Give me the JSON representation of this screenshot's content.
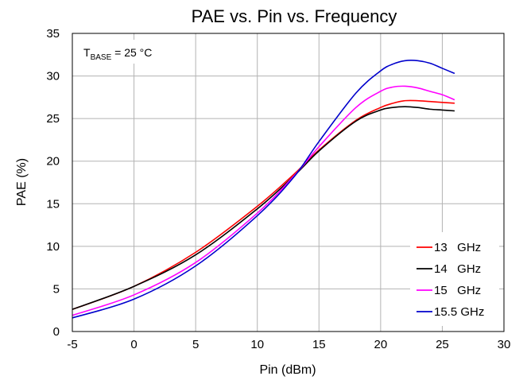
{
  "chart_data": {
    "type": "line",
    "title": "PAE vs. Pin vs. Frequency",
    "xlabel": "Pin (dBm)",
    "ylabel": "PAE (%)",
    "xlim": [
      -5,
      30
    ],
    "ylim": [
      0,
      35
    ],
    "xticks": [
      -5,
      0,
      5,
      10,
      15,
      20,
      25,
      30
    ],
    "yticks": [
      0,
      5,
      10,
      15,
      20,
      25,
      30,
      35
    ],
    "grid": true,
    "legend_position": "bottom-right",
    "annotation": {
      "main": "T",
      "sub": "BASE",
      "rest": " = 25 °C"
    },
    "series": [
      {
        "name": "13   GHz",
        "color": "#ff0000",
        "x": [
          -5,
          0,
          5,
          10,
          13,
          15,
          18,
          20,
          21,
          22,
          23,
          24,
          25,
          26
        ],
        "y": [
          2.6,
          5.3,
          9.3,
          14.7,
          18.5,
          21.3,
          24.8,
          26.3,
          26.8,
          27.1,
          27.1,
          27.0,
          26.9,
          26.8
        ]
      },
      {
        "name": "14   GHz",
        "color": "#000000",
        "x": [
          -5,
          0,
          5,
          10,
          13,
          15,
          18,
          20,
          21,
          22,
          23,
          24,
          25,
          26
        ],
        "y": [
          2.6,
          5.3,
          9.0,
          14.4,
          18.3,
          21.2,
          24.7,
          26.0,
          26.3,
          26.4,
          26.3,
          26.1,
          26.0,
          25.9
        ]
      },
      {
        "name": "15   GHz",
        "color": "#ff00ff",
        "x": [
          -5,
          0,
          5,
          10,
          13,
          15,
          18,
          20,
          21,
          22,
          23,
          24,
          25,
          26
        ],
        "y": [
          1.9,
          4.3,
          8.1,
          13.9,
          18.3,
          21.7,
          26.3,
          28.2,
          28.7,
          28.8,
          28.6,
          28.2,
          27.8,
          27.2
        ]
      },
      {
        "name": "15.5 GHz",
        "color": "#0000cc",
        "x": [
          -5,
          0,
          5,
          10,
          13,
          15,
          18,
          20,
          21,
          22,
          23,
          24,
          25,
          26
        ],
        "y": [
          1.6,
          3.8,
          7.7,
          13.6,
          18.2,
          22.3,
          28.0,
          30.6,
          31.4,
          31.8,
          31.8,
          31.5,
          30.9,
          30.3
        ]
      }
    ]
  }
}
